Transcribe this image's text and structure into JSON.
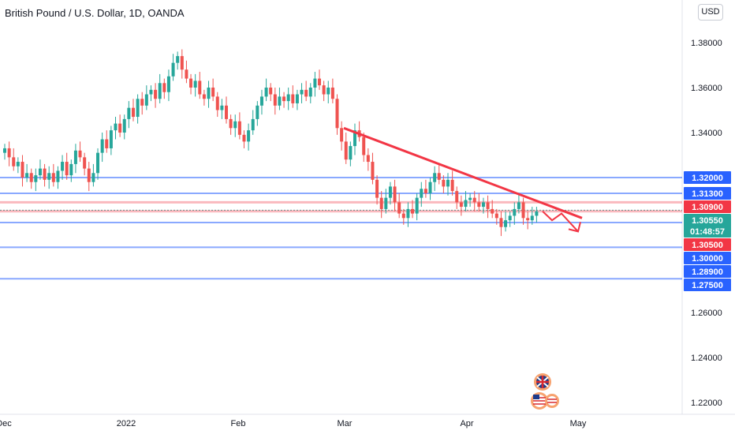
{
  "header": {
    "title": "British Pound / U.S. Dollar, 1D, OANDA",
    "currency_button": "USD"
  },
  "colors": {
    "up": "#26a69a",
    "down": "#ef5350",
    "level_blue": "#2962ff",
    "level_red": "#f23645",
    "trendline": "#f23645"
  },
  "chart_data": {
    "type": "candlestick",
    "ylim": [
      1.215,
      1.395
    ],
    "y_ticks": [
      "1.38000",
      "1.36000",
      "1.34000",
      "1.26000",
      "1.24000",
      "1.22000"
    ],
    "x_ticks": [
      "Dec",
      "2022",
      "Feb",
      "Mar",
      "Apr",
      "May"
    ],
    "levels": [
      {
        "value": 1.32,
        "label": "1.32000",
        "style": "blue"
      },
      {
        "value": 1.313,
        "label": "1.31300",
        "style": "blue"
      },
      {
        "value": 1.309,
        "label": "1.30900",
        "style": "red"
      },
      {
        "value": 1.3055,
        "label": "1.30550",
        "style": "current",
        "sub_label": "01:48:57"
      },
      {
        "value": 1.305,
        "label": "1.30500",
        "style": "red"
      },
      {
        "value": 1.3,
        "label": "1.30000",
        "style": "blue"
      },
      {
        "value": 1.289,
        "label": "1.28900",
        "style": "blue"
      },
      {
        "value": 1.275,
        "label": "1.27500",
        "style": "blue"
      }
    ],
    "candles_close": [
      1.333,
      1.329,
      1.325,
      1.327,
      1.32,
      1.322,
      1.318,
      1.321,
      1.324,
      1.319,
      1.322,
      1.318,
      1.323,
      1.327,
      1.321,
      1.326,
      1.332,
      1.329,
      1.324,
      1.318,
      1.322,
      1.331,
      1.337,
      1.333,
      1.341,
      1.344,
      1.34,
      1.346,
      1.351,
      1.347,
      1.355,
      1.352,
      1.357,
      1.359,
      1.355,
      1.362,
      1.358,
      1.365,
      1.371,
      1.374,
      1.368,
      1.364,
      1.36,
      1.363,
      1.357,
      1.355,
      1.36,
      1.356,
      1.35,
      1.352,
      1.346,
      1.342,
      1.345,
      1.339,
      1.336,
      1.341,
      1.346,
      1.352,
      1.356,
      1.36,
      1.357,
      1.352,
      1.356,
      1.354,
      1.357,
      1.353,
      1.357,
      1.359,
      1.356,
      1.36,
      1.364,
      1.361,
      1.357,
      1.36,
      1.355,
      1.342,
      1.336,
      1.328,
      1.334,
      1.341,
      1.338,
      1.33,
      1.327,
      1.319,
      1.311,
      1.306,
      1.311,
      1.316,
      1.309,
      1.304,
      1.302,
      1.306,
      1.304,
      1.311,
      1.315,
      1.313,
      1.318,
      1.322,
      1.319,
      1.316,
      1.319,
      1.314,
      1.309,
      1.307,
      1.31,
      1.311,
      1.309,
      1.307,
      1.309,
      1.306,
      1.304,
      1.302,
      1.298,
      1.301,
      1.303,
      1.306,
      1.309,
      1.302,
      1.301,
      1.303,
      1.305
    ],
    "trendline": {
      "start": {
        "x": "Feb 23",
        "y": 1.342
      },
      "end": {
        "x": "Apr 28",
        "y": 1.302
      }
    },
    "forecast_path": [
      [
        1.305,
        1.305
      ],
      [
        1.301,
        1.304
      ],
      [
        1.304,
        1.296
      ]
    ]
  }
}
